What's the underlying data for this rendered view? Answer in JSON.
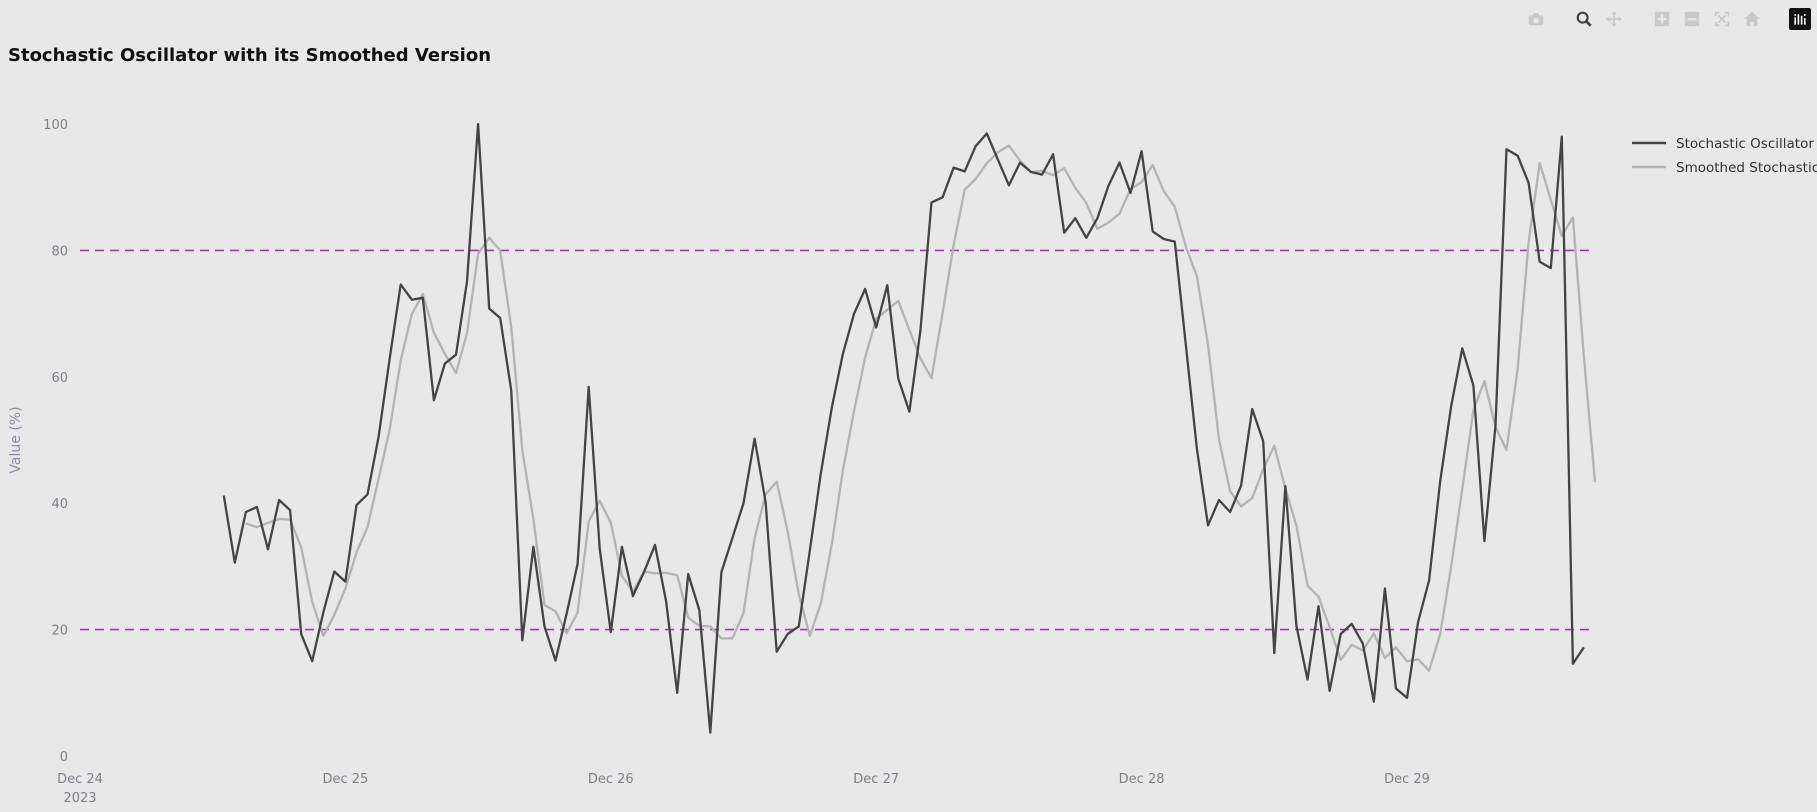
{
  "toolbar": {
    "icons": [
      "camera-icon",
      "zoom-icon",
      "pan-icon",
      "zoom-in-icon",
      "zoom-out-icon",
      "autoscale-icon",
      "home-icon",
      "plotly-logo-icon"
    ]
  },
  "chart_data": {
    "type": "line",
    "title": "Stochastic Oscillator with its Smoothed Version",
    "ylabel": "Value (%)",
    "xlabel": "",
    "ylim": [
      0,
      100
    ],
    "xlim": [
      0,
      137
    ],
    "x_ticks": [
      {
        "pos": 0,
        "label": "Dec 24",
        "sub": "2023"
      },
      {
        "pos": 24,
        "label": "Dec 25",
        "sub": ""
      },
      {
        "pos": 48,
        "label": "Dec 26",
        "sub": ""
      },
      {
        "pos": 72,
        "label": "Dec 27",
        "sub": ""
      },
      {
        "pos": 96,
        "label": "Dec 28",
        "sub": ""
      },
      {
        "pos": 120,
        "label": "Dec 29",
        "sub": ""
      }
    ],
    "y_ticks": [
      0,
      20,
      40,
      60,
      80,
      100
    ],
    "x_unit": "hours since Dec 24 2023 00:00",
    "reference_lines": [
      {
        "y": 80,
        "color": "#9c3ba8",
        "style": "dashed"
      },
      {
        "y": 20,
        "color": "#9c3ba8",
        "style": "dashed"
      }
    ],
    "series": [
      {
        "name": "Stochastic Oscillator",
        "color": "#444444",
        "x_start": 13,
        "values": [
          41.2,
          30.6,
          38.6,
          39.4,
          32.7,
          40.5,
          38.9,
          19.3,
          15.0,
          22.7,
          29.2,
          27.6,
          39.7,
          41.4,
          50.5,
          62.8,
          74.6,
          72.2,
          72.5,
          56.3,
          62.1,
          63.5,
          75.1,
          100.0,
          70.8,
          69.3,
          57.8,
          18.3,
          33.1,
          20.5,
          15.1,
          22.5,
          30.4,
          58.4,
          32.8,
          19.6,
          33.1,
          25.3,
          29.1,
          33.4,
          24.5,
          10.0,
          28.8,
          23.1,
          3.7,
          29.1,
          34.5,
          40.0,
          50.2,
          40.2,
          16.5,
          19.3,
          20.5,
          32.6,
          44.8,
          55.3,
          63.7,
          70.0,
          73.9,
          67.8,
          74.5,
          59.7,
          54.5,
          67.3,
          87.6,
          88.4,
          93.1,
          92.5,
          96.5,
          98.5,
          94.4,
          90.3,
          93.9,
          92.4,
          92.0,
          95.2,
          82.8,
          85.1,
          82.0,
          85.1,
          90.2,
          93.9,
          89.1,
          95.7,
          83.0,
          81.8,
          81.4,
          65.1,
          48.6,
          36.5,
          40.5,
          38.6,
          42.8,
          54.9,
          49.8,
          16.3,
          42.7,
          20.6,
          12.1,
          23.7,
          10.3,
          19.3,
          20.9,
          17.8,
          8.6,
          26.5,
          10.7,
          9.2,
          21.2,
          27.8,
          43.5,
          55.4,
          64.5,
          58.6,
          34.0,
          52.3,
          96.0,
          95.0,
          90.7,
          78.2,
          77.2,
          98.0,
          14.6,
          17.2
        ]
      },
      {
        "name": "Smoothed Stochastic",
        "color": "#b3b3b3",
        "x_start": 15,
        "values": [
          36.8,
          36.2,
          36.9,
          37.5,
          37.4,
          33.0,
          24.4,
          19.0,
          22.3,
          26.5,
          32.2,
          36.2,
          43.9,
          51.6,
          62.6,
          69.9,
          73.1,
          67.0,
          63.6,
          60.6,
          66.9,
          79.5,
          82.0,
          80.0,
          67.8,
          48.4,
          37.5,
          23.9,
          22.9,
          19.4,
          22.7,
          37.1,
          40.4,
          36.9,
          28.5,
          26.0,
          29.2,
          28.9,
          29.0,
          28.6,
          21.9,
          20.6,
          20.5,
          18.6,
          18.6,
          22.6,
          34.5,
          41.4,
          43.4,
          35.5,
          25.6,
          19.0,
          24.2,
          33.7,
          45.3,
          54.6,
          63.0,
          69.2,
          70.6,
          72.0,
          67.4,
          62.9,
          59.8,
          70.1,
          80.8,
          89.6,
          91.3,
          93.8,
          95.5,
          96.6,
          94.2,
          92.4,
          92.6,
          91.9,
          93.0,
          89.9,
          87.5,
          83.4,
          84.4,
          85.8,
          89.7,
          90.8,
          93.5,
          89.4,
          86.9,
          80.6,
          75.9,
          65.1,
          50.1,
          41.9,
          39.5,
          40.8,
          45.4,
          49.1,
          42.3,
          36.5,
          27.0,
          25.2,
          20.4,
          15.2,
          17.6,
          16.7,
          19.4,
          15.5,
          17.2,
          15.0,
          15.3,
          13.5,
          19.3,
          30.0,
          42.3,
          54.7,
          59.3,
          52.1,
          48.4,
          61.2,
          81.3,
          93.8,
          88.0,
          82.3,
          85.2,
          63.2,
          43.3
        ]
      }
    ],
    "legend": {
      "placement": "top-right"
    },
    "grid": false
  }
}
